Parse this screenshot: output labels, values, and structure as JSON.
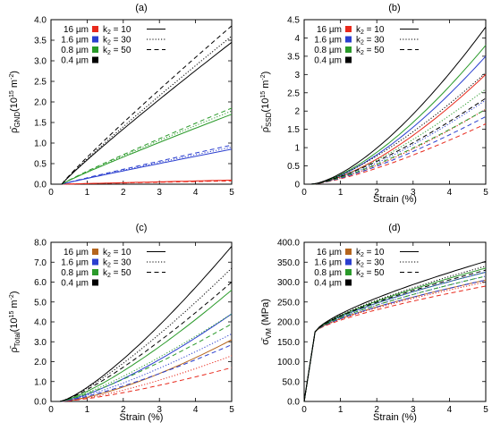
{
  "colors": {
    "16 µm": "#e8291c",
    "1.6 µm": "#2b3fcf",
    "0.8 µm": "#2a9a2a",
    "0.4 µm": "#000000",
    "16 µm (c,d)": "#b5651d"
  },
  "chart_data": [
    {
      "panel": "(a)",
      "type": "line",
      "ylabel_main": "ρ̄",
      "ylabel_sub": "GND",
      "ylabel_paren": "(10",
      "ylabel_exp": "15",
      "ylabel_unit": " m",
      "ylabel_exp2": "-2",
      "ylabel_close": ")",
      "xlabel": "",
      "xlim": [
        0,
        5
      ],
      "ylim": [
        0,
        4
      ],
      "xticks": [
        "0",
        "1",
        "2",
        "3",
        "4",
        "5"
      ],
      "yticks": [
        "0.0",
        "0.5",
        "1.0",
        "1.5",
        "2.0",
        "2.5",
        "3.0",
        "3.5",
        "4.0"
      ],
      "legend_sizes": [
        "16 µm",
        "1.6 µm",
        "0.8 µm",
        "0.4 µm"
      ],
      "legend_k": [
        {
          "k": "k",
          "sub": "2",
          "val": " = 10",
          "dash": "solid"
        },
        {
          "k": "k",
          "sub": "2",
          "val": " = 30",
          "dash": "dotted"
        },
        {
          "k": "k",
          "sub": "2",
          "val": " = 50",
          "dash": "dashed"
        }
      ],
      "legend_position": "top-left",
      "x_start": 0.3,
      "series": [
        {
          "group": "16 µm",
          "k": 10,
          "end": 0.1,
          "curv": 0.98
        },
        {
          "group": "16 µm",
          "k": 30,
          "end": 0.09,
          "curv": 0.98
        },
        {
          "group": "16 µm",
          "k": 50,
          "end": 0.08,
          "curv": 0.98
        },
        {
          "group": "1.6 µm",
          "k": 10,
          "end": 0.85,
          "curv": 0.95
        },
        {
          "group": "1.6 µm",
          "k": 30,
          "end": 0.9,
          "curv": 0.95
        },
        {
          "group": "1.6 µm",
          "k": 50,
          "end": 0.95,
          "curv": 0.95
        },
        {
          "group": "0.8 µm",
          "k": 10,
          "end": 1.7,
          "curv": 0.93
        },
        {
          "group": "0.8 µm",
          "k": 30,
          "end": 1.78,
          "curv": 0.93
        },
        {
          "group": "0.8 µm",
          "k": 50,
          "end": 1.85,
          "curv": 0.93
        },
        {
          "group": "0.4 µm",
          "k": 10,
          "end": 3.45,
          "curv": 0.93
        },
        {
          "group": "0.4 µm",
          "k": 30,
          "end": 3.6,
          "curv": 0.93
        },
        {
          "group": "0.4 µm",
          "k": 50,
          "end": 3.85,
          "curv": 0.93
        }
      ]
    },
    {
      "panel": "(b)",
      "type": "line",
      "ylabel_main": "ρ̄",
      "ylabel_sub": "SSD",
      "ylabel_paren": "(10",
      "ylabel_exp": "15",
      "ylabel_unit": " m",
      "ylabel_exp2": "-2",
      "ylabel_close": ")",
      "xlabel": "Strain (%)",
      "xlim": [
        0,
        5
      ],
      "ylim": [
        0,
        4.5
      ],
      "xticks": [
        "0",
        "1",
        "2",
        "3",
        "4",
        "5"
      ],
      "yticks": [
        "0",
        "0.5",
        "1",
        "1.5",
        "2",
        "2.5",
        "3",
        "3.5",
        "4",
        "4.5"
      ],
      "legend_sizes": [
        "16 µm",
        "1.6 µm",
        "0.8 µm",
        "0.4 µm"
      ],
      "legend_k": [
        {
          "k": "k",
          "sub": "2",
          "val": " = 10",
          "dash": "solid"
        },
        {
          "k": "k",
          "sub": "2",
          "val": " = 30",
          "dash": "dotted"
        },
        {
          "k": "k",
          "sub": "2",
          "val": " = 50",
          "dash": "dashed"
        }
      ],
      "legend_position": "top-left",
      "x_start": 0.2,
      "series": [
        {
          "group": "16 µm",
          "k": 10,
          "end": 3.0,
          "curv": 1.5
        },
        {
          "group": "16 µm",
          "k": 30,
          "end": 2.05,
          "curv": 1.4
        },
        {
          "group": "16 µm",
          "k": 50,
          "end": 1.65,
          "curv": 1.35
        },
        {
          "group": "1.6 µm",
          "k": 10,
          "end": 3.5,
          "curv": 1.5
        },
        {
          "group": "1.6 µm",
          "k": 30,
          "end": 2.3,
          "curv": 1.4
        },
        {
          "group": "1.6 µm",
          "k": 50,
          "end": 1.85,
          "curv": 1.35
        },
        {
          "group": "0.8 µm",
          "k": 10,
          "end": 3.8,
          "curv": 1.5
        },
        {
          "group": "0.8 µm",
          "k": 30,
          "end": 2.6,
          "curv": 1.4
        },
        {
          "group": "0.8 µm",
          "k": 50,
          "end": 2.05,
          "curv": 1.35
        },
        {
          "group": "0.4 µm",
          "k": 10,
          "end": 4.3,
          "curv": 1.5
        },
        {
          "group": "0.4 µm",
          "k": 30,
          "end": 3.05,
          "curv": 1.4
        },
        {
          "group": "0.4 µm",
          "k": 50,
          "end": 2.35,
          "curv": 1.35
        }
      ]
    },
    {
      "panel": "(c)",
      "type": "line",
      "ylabel_main": "ρ̄",
      "ylabel_sub": "Total",
      "ylabel_paren": "(10",
      "ylabel_exp": "15",
      "ylabel_unit": " m",
      "ylabel_exp2": "-2",
      "ylabel_close": ")",
      "xlabel": "Strain (%)",
      "xlim": [
        0,
        5
      ],
      "ylim": [
        0,
        8
      ],
      "xticks": [
        "0",
        "1",
        "2",
        "3",
        "4",
        "5"
      ],
      "yticks": [
        "0.0",
        "1.0",
        "2.0",
        "3.0",
        "4.0",
        "5.0",
        "6.0",
        "7.0",
        "8.0"
      ],
      "legend_sizes": [
        "16 µm",
        "1.6 µm",
        "0.8 µm",
        "0.4 µm"
      ],
      "legend_k": [
        {
          "k": "k",
          "sub": "2",
          "val": " = 10",
          "dash": "solid"
        },
        {
          "k": "k",
          "sub": "2",
          "val": " = 30",
          "dash": "dotted"
        },
        {
          "k": "k",
          "sub": "2",
          "val": " = 50",
          "dash": "dashed"
        }
      ],
      "legend_position": "top-left",
      "x_start": 0.25,
      "series": [
        {
          "group": "16 µm (c,d)",
          "k": 10,
          "end": 3.1,
          "curv": 1.45
        },
        {
          "group": "16 µm",
          "k": 30,
          "end": 2.3,
          "curv": 1.4
        },
        {
          "group": "16 µm",
          "k": 50,
          "end": 1.7,
          "curv": 1.35
        },
        {
          "group": "1.6 µm",
          "k": 10,
          "end": 4.4,
          "curv": 1.35
        },
        {
          "group": "1.6 µm",
          "k": 30,
          "end": 3.4,
          "curv": 1.3
        },
        {
          "group": "1.6 µm",
          "k": 50,
          "end": 2.85,
          "curv": 1.3
        },
        {
          "group": "0.8 µm",
          "k": 10,
          "end": 5.6,
          "curv": 1.3
        },
        {
          "group": "0.8 µm",
          "k": 30,
          "end": 4.4,
          "curv": 1.25
        },
        {
          "group": "0.8 µm",
          "k": 50,
          "end": 3.9,
          "curv": 1.25
        },
        {
          "group": "0.4 µm",
          "k": 10,
          "end": 7.8,
          "curv": 1.3
        },
        {
          "group": "0.4 µm",
          "k": 30,
          "end": 6.7,
          "curv": 1.25
        },
        {
          "group": "0.4 µm",
          "k": 50,
          "end": 6.0,
          "curv": 1.25
        }
      ]
    },
    {
      "panel": "(d)",
      "type": "line",
      "ylabel_main": "σ̄",
      "ylabel_sub": "VM",
      "ylabel_paren": " (MPa)",
      "ylabel_exp": "",
      "ylabel_unit": "",
      "ylabel_exp2": "",
      "ylabel_close": "",
      "xlabel": "Strain (%)",
      "xlim": [
        0,
        5
      ],
      "ylim": [
        0,
        400
      ],
      "xticks": [
        "0",
        "1",
        "2",
        "3",
        "4",
        "5"
      ],
      "yticks": [
        "0.0",
        "50.0",
        "100.0",
        "150.0",
        "200.0",
        "250.0",
        "300.0",
        "350.0",
        "400.0"
      ],
      "legend_sizes": [
        "16 µm",
        "1.6 µm",
        "0.8 µm",
        "0.4 µm"
      ],
      "legend_k": [
        {
          "k": "k",
          "sub": "2",
          "val": " = 10",
          "dash": "solid"
        },
        {
          "k": "k",
          "sub": "2",
          "val": " = 30",
          "dash": "dotted"
        },
        {
          "k": "k",
          "sub": "2",
          "val": " = 50",
          "dash": "dashed"
        }
      ],
      "legend_position": "top-left",
      "elastic_end": [
        0.3,
        175
      ],
      "series": [
        {
          "group": "16 µm (c,d)",
          "k": 10,
          "end": 305
        },
        {
          "group": "16 µm",
          "k": 30,
          "end": 300
        },
        {
          "group": "16 µm",
          "k": 50,
          "end": 290
        },
        {
          "group": "1.6 µm",
          "k": 10,
          "end": 325
        },
        {
          "group": "1.6 µm",
          "k": 30,
          "end": 315
        },
        {
          "group": "1.6 µm",
          "k": 50,
          "end": 305
        },
        {
          "group": "0.8 µm",
          "k": 10,
          "end": 335
        },
        {
          "group": "0.8 µm",
          "k": 30,
          "end": 325
        },
        {
          "group": "0.8 µm",
          "k": 50,
          "end": 315
        },
        {
          "group": "0.4 µm",
          "k": 10,
          "end": 352
        },
        {
          "group": "0.4 µm",
          "k": 30,
          "end": 340
        },
        {
          "group": "0.4 µm",
          "k": 50,
          "end": 330
        }
      ]
    }
  ]
}
